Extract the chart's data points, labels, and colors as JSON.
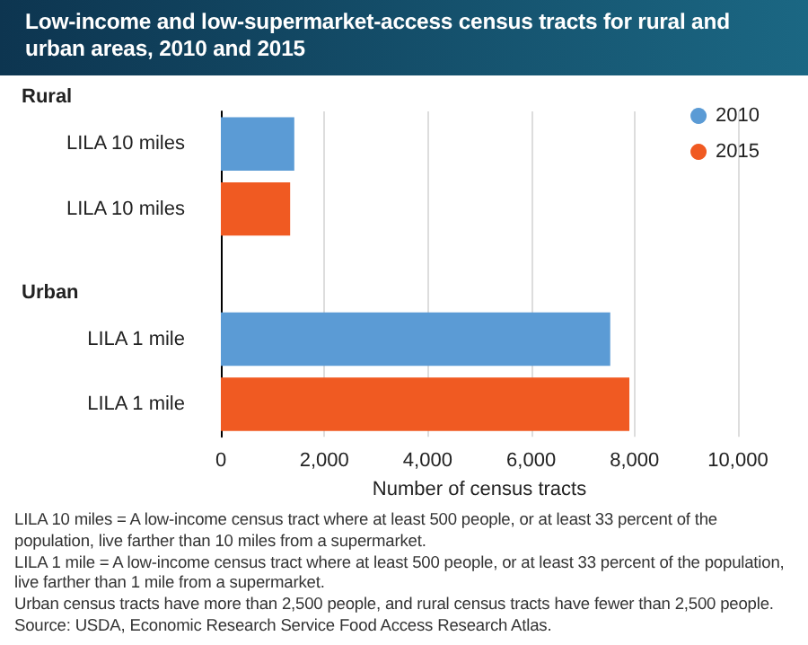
{
  "chart_data": {
    "type": "bar",
    "orientation": "horizontal",
    "title": "Low-income and low-supermarket-access census tracts for rural and urban areas, 2010 and 2015",
    "xlabel": "Number of census tracts",
    "categories": [
      "LILA 10 miles",
      "LILA 10 miles",
      null,
      "LILA 1 mile",
      "LILA 1 mile"
    ],
    "series": [
      {
        "name": "2010",
        "color": "#5b9bd5",
        "values": [
          1420,
          null,
          null,
          7530,
          null
        ]
      },
      {
        "name": "2015",
        "color": "#f05a22",
        "values": [
          null,
          1340,
          null,
          null,
          7900
        ]
      }
    ],
    "xlim": [
      0,
      10000
    ],
    "xticks": [
      0,
      {
        "value": 2000,
        "label": "2,000"
      },
      {
        "value": 4000,
        "label": "4,000"
      },
      {
        "value": 6000,
        "label": "6,000"
      },
      {
        "value": 8000,
        "label": "8,000"
      },
      {
        "value": 10000,
        "label": "10,000"
      }
    ],
    "grid": "x",
    "legend": "top right",
    "annotations": [
      "Rural",
      "Urban",
      "LILA 10 miles = A low-income census tract where at least 500 people, or at least 33 percent of the population, live farther than 10 miles from a supermarket.",
      "LILA 1 mile = A low-income census tract where at least 500 people, or at least 33 percent of the population, live farther than 1 mile from a supermarket.",
      "Urban census tracts have more than 2,500 people, and rural census tracts have fewer than 2,500 people.",
      "Source: USDA, Economic Research Service Food Access Research Atlas."
    ]
  }
}
